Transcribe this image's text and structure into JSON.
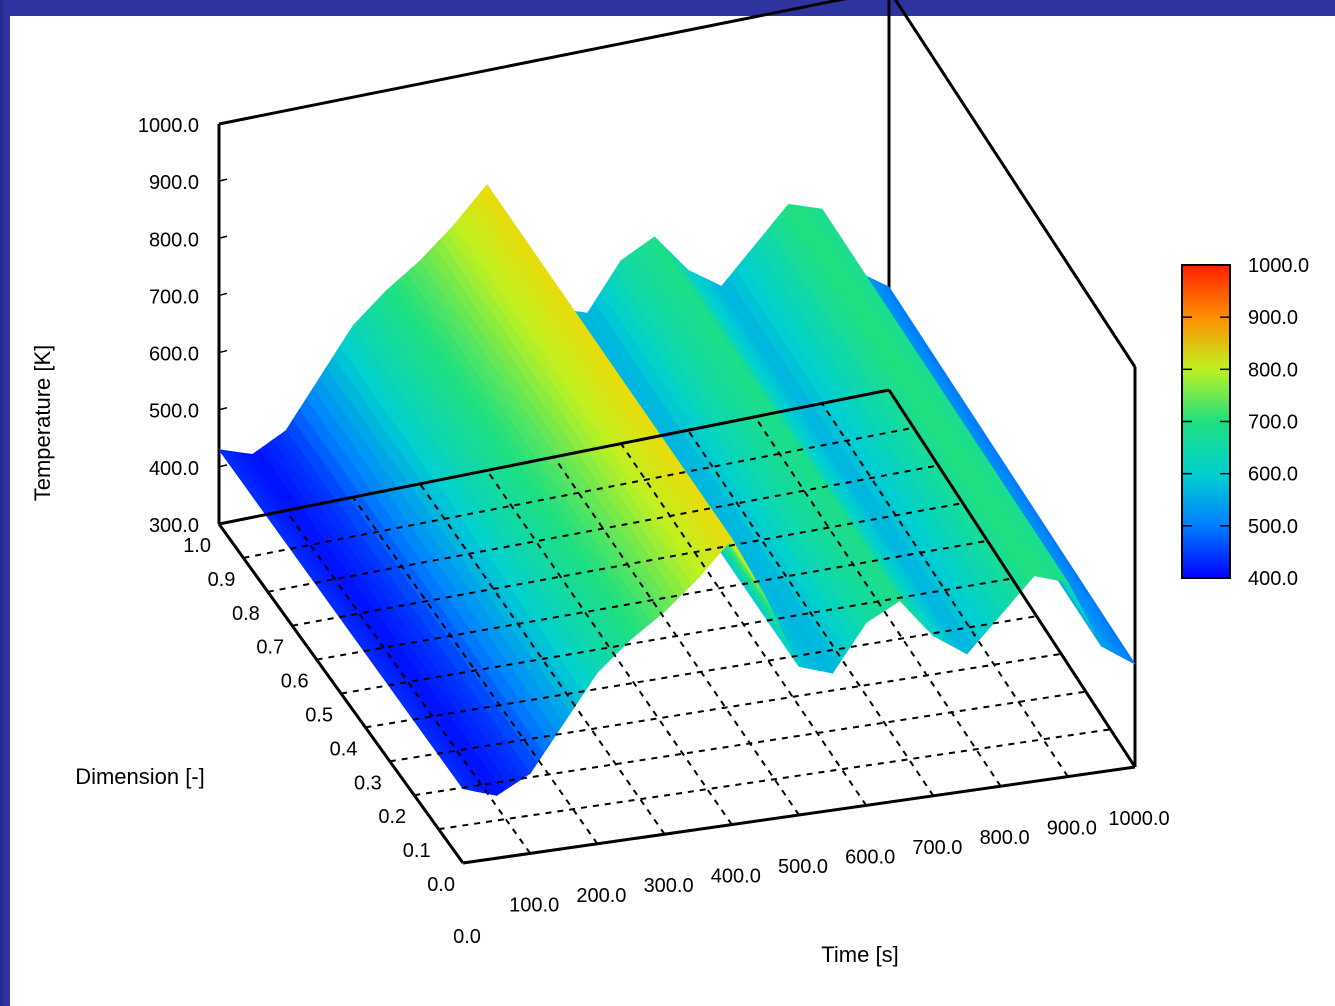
{
  "chart_data": {
    "type": "surface3d",
    "title": "",
    "xlabel": "Time [s]",
    "ylabel": "Dimension [-]",
    "zlabel": "Temperature [K]",
    "x_ticks": [
      "0.0",
      "100.0",
      "200.0",
      "300.0",
      "400.0",
      "500.0",
      "600.0",
      "700.0",
      "800.0",
      "900.0",
      "1000.0"
    ],
    "y_ticks": [
      "0.0",
      "0.1",
      "0.2",
      "0.3",
      "0.4",
      "0.5",
      "0.6",
      "0.7",
      "0.8",
      "0.9",
      "1.0"
    ],
    "z_ticks": [
      "300.0",
      "400.0",
      "500.0",
      "600.0",
      "700.0",
      "800.0",
      "900.0",
      "1000.0"
    ],
    "xlim": [
      0,
      1000
    ],
    "ylim": [
      0,
      1
    ],
    "zlim": [
      300,
      1000
    ],
    "colorbar": {
      "range": [
        400,
        1000
      ],
      "ticks": [
        "1000.0",
        "900.0",
        "800.0",
        "700.0",
        "600.0",
        "500.0",
        "400.0"
      ],
      "colormap": "jet"
    },
    "grid": "dashed",
    "temperature_profile": {
      "time": [
        0,
        50,
        100,
        150,
        200,
        250,
        300,
        350,
        400,
        450,
        500,
        550,
        600,
        650,
        700,
        750,
        800,
        850,
        900,
        950,
        1000
      ],
      "temperature": [
        430,
        410,
        440,
        520,
        600,
        650,
        690,
        740,
        800,
        690,
        560,
        540,
        620,
        650,
        580,
        540,
        600,
        660,
        640,
        520,
        480
      ]
    },
    "colors": {
      "background": "#2f33a0",
      "colormap_stops": [
        "#0000ff",
        "#0080ff",
        "#00d0d0",
        "#20e080",
        "#c0f020",
        "#ffd000",
        "#ff8000",
        "#ff2000"
      ]
    }
  }
}
